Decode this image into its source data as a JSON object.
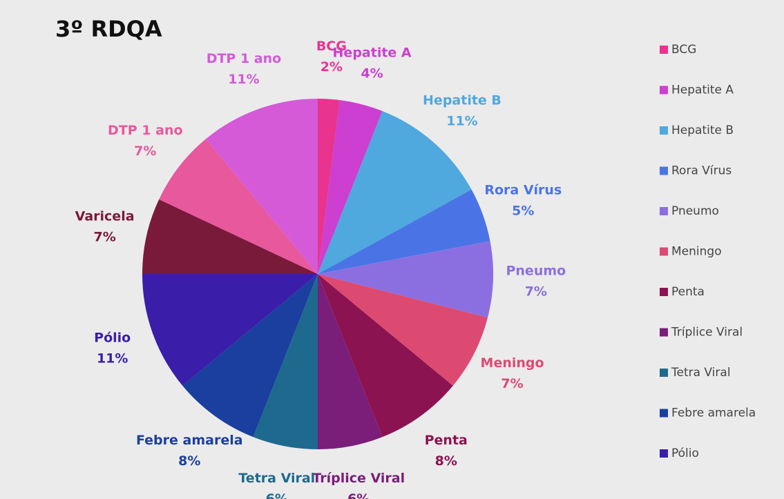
{
  "chart_data": {
    "type": "pie",
    "title": "3º RDQA",
    "categories": [
      "BCG",
      "Hepatite A",
      "Hepatite B",
      "Rora Vírus",
      "Pneumo",
      "Meningo",
      "Penta",
      "Tríplice Viral",
      "Tetra Viral",
      "Febre amarela",
      "Pólio",
      "Varicela",
      "DTP 1 ano",
      "DTP 1 ano"
    ],
    "values": [
      2,
      4,
      11,
      5,
      7,
      7,
      8,
      6,
      6,
      8,
      11,
      7,
      7,
      11
    ],
    "value_labels": [
      "2%",
      "4%",
      "11%",
      "5%",
      "7%",
      "7%",
      "8%",
      "6%",
      "6%",
      "8%",
      "11%",
      "7%",
      "7%",
      "11%"
    ],
    "colors": [
      "#e8348f",
      "#cc3fd0",
      "#4fa8de",
      "#4a74e6",
      "#8b6fe0",
      "#dc4a72",
      "#8c1352",
      "#7a1e7a",
      "#1e6a8e",
      "#1a3f9e",
      "#3a1eaa",
      "#7a1a3a",
      "#e8589c",
      "#d45ad8"
    ],
    "legend": [
      "BCG",
      "Hepatite A",
      "Hepatite B",
      "Rora Vírus",
      "Pneumo",
      "Meningo",
      "Penta",
      "Tríplice Viral",
      "Tetra Viral",
      "Febre amarela",
      "Pólio"
    ]
  }
}
